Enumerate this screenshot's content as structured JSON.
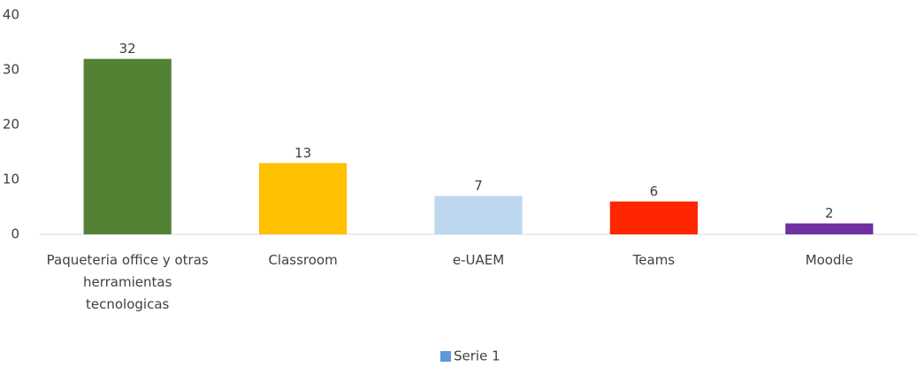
{
  "chart_data": {
    "type": "bar",
    "categories": [
      "Paqueteria office y otras herramientas tecnologicas",
      "Classroom",
      "e-UAEM",
      "Teams",
      "Moodle"
    ],
    "series": [
      {
        "name": "Serie 1",
        "color": "#5b9bd5",
        "values": [
          32,
          13,
          7,
          6,
          2
        ]
      }
    ],
    "bar_colors": [
      "#548235",
      "#ffc000",
      "#bdd7ee",
      "#ff2600",
      "#7030a0"
    ],
    "ylim": [
      0,
      40
    ],
    "yticks": [
      0,
      10,
      20,
      30,
      40
    ],
    "grid": false,
    "legend": "bottom"
  }
}
